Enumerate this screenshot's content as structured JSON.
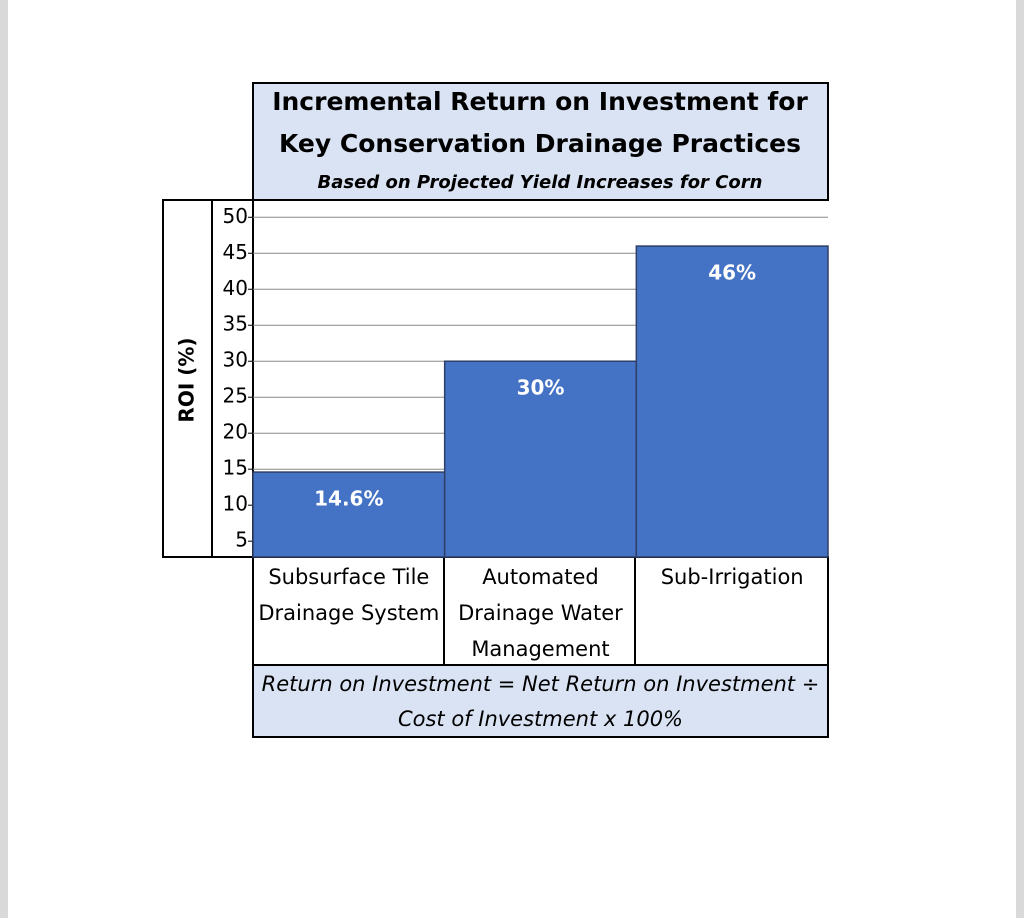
{
  "chart_data": {
    "type": "bar",
    "title": "Incremental Return on Investment for Key Conservation Drainage Practices",
    "subtitle": "Based on Projected Yield Increases for Corn",
    "y_label": "ROI (%)",
    "categories": [
      "Subsurface Tile Drainage System",
      "Automated Drainage Water Management",
      "Sub-Irrigation"
    ],
    "values": [
      14.6,
      30,
      46
    ],
    "value_labels": [
      "14.6%",
      "30%",
      "46%"
    ],
    "color": "#4472c4",
    "ylim": [
      2.8,
      52.4
    ],
    "yticks": [
      5,
      10,
      15,
      20,
      25,
      30,
      35,
      40,
      45,
      50
    ],
    "grid": true,
    "footnote": "Return on Investment = Net Return on Investment ÷ Cost of Investment x 100%"
  }
}
